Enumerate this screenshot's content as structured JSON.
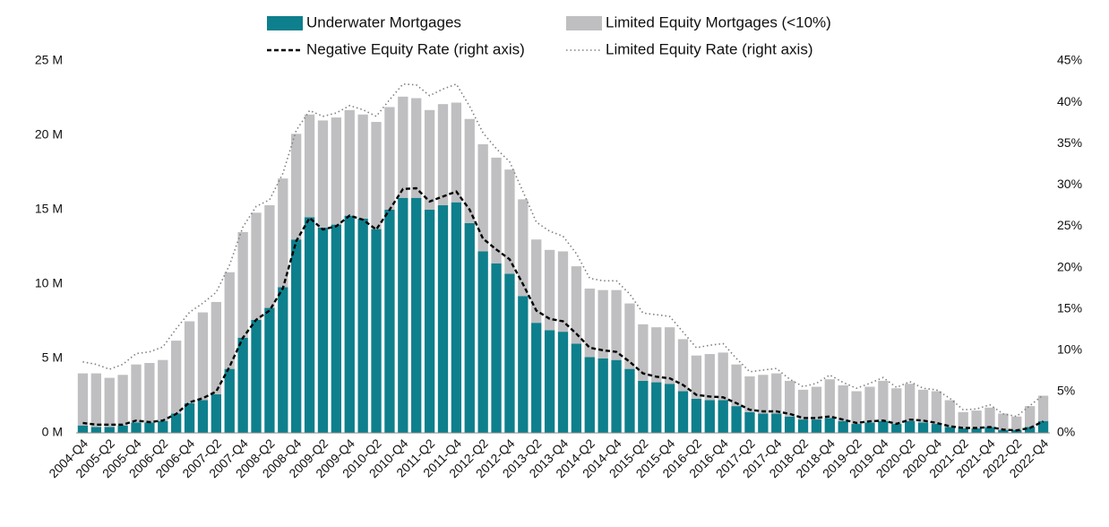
{
  "chart_data": {
    "type": "bar",
    "stacked": true,
    "categories": [
      "2004-Q4",
      null,
      "2005-Q2",
      null,
      "2005-Q4",
      null,
      "2006-Q2",
      null,
      "2006-Q4",
      null,
      "2007-Q2",
      null,
      "2007-Q4",
      null,
      "2008-Q2",
      null,
      "2008-Q4",
      null,
      "2009-Q2",
      null,
      "2009-Q4",
      null,
      "2010-Q2",
      null,
      "2010-Q4",
      null,
      "2011-Q2",
      null,
      "2011-Q4",
      null,
      "2012-Q2",
      null,
      "2012-Q4",
      null,
      "2013-Q2",
      null,
      "2013-Q4",
      null,
      "2014-Q2",
      null,
      "2014-Q4",
      null,
      "2015-Q2",
      null,
      "2015-Q4",
      null,
      "2016-Q2",
      null,
      "2016-Q4",
      null,
      "2017-Q2",
      null,
      "2017-Q4",
      null,
      "2018-Q2",
      null,
      "2018-Q4",
      null,
      "2019-Q2",
      null,
      "2019-Q4",
      null,
      "2020-Q2",
      null,
      "2020-Q4",
      null,
      "2021-Q2",
      null,
      "2021-Q4",
      null,
      "2022-Q2",
      null,
      "2022-Q4"
    ],
    "series": [
      {
        "name": "Underwater Mortgages",
        "type": "bar",
        "color": "#0e7f8c",
        "values": [
          0.5,
          0.4,
          0.4,
          0.5,
          0.7,
          0.7,
          0.8,
          1.3,
          2.0,
          2.2,
          2.6,
          4.3,
          6.4,
          7.6,
          8.4,
          9.8,
          13.0,
          14.5,
          13.8,
          14.0,
          14.6,
          14.4,
          13.7,
          15.0,
          15.8,
          15.8,
          15.0,
          15.3,
          15.5,
          14.1,
          12.2,
          11.4,
          10.7,
          9.2,
          7.4,
          6.9,
          6.8,
          6.0,
          5.1,
          5.0,
          4.9,
          4.3,
          3.5,
          3.4,
          3.3,
          2.8,
          2.3,
          2.2,
          2.2,
          1.8,
          1.4,
          1.3,
          1.3,
          1.1,
          0.9,
          0.9,
          1.0,
          0.8,
          0.6,
          0.7,
          0.8,
          0.6,
          0.8,
          0.7,
          0.6,
          0.4,
          0.3,
          0.3,
          0.4,
          0.2,
          0.2,
          0.4,
          0.8
        ]
      },
      {
        "name": "Limited Equity Mortgages (<10%)",
        "type": "bar",
        "color": "#bfbfc1",
        "values": [
          3.5,
          3.6,
          3.3,
          3.4,
          3.9,
          4.0,
          4.1,
          4.9,
          5.5,
          5.9,
          6.2,
          6.5,
          7.1,
          7.2,
          6.9,
          7.3,
          7.1,
          6.9,
          7.2,
          7.2,
          7.1,
          7.0,
          7.2,
          6.9,
          6.8,
          6.7,
          6.7,
          6.8,
          6.7,
          7.0,
          7.2,
          7.1,
          7.0,
          6.5,
          5.6,
          5.4,
          5.4,
          5.2,
          4.6,
          4.6,
          4.7,
          4.4,
          3.8,
          3.7,
          3.8,
          3.5,
          2.9,
          3.1,
          3.2,
          2.8,
          2.4,
          2.6,
          2.7,
          2.4,
          2.0,
          2.2,
          2.6,
          2.4,
          2.2,
          2.4,
          2.7,
          2.4,
          2.5,
          2.2,
          2.2,
          1.8,
          1.1,
          1.2,
          1.3,
          1.1,
          0.9,
          1.4,
          1.7
        ]
      },
      {
        "name": "Negative Equity Rate (right axis)",
        "type": "line",
        "axis": "y2",
        "dash": "dashed",
        "color": "#000000",
        "values": [
          1.2,
          1.0,
          1.0,
          1.0,
          1.5,
          1.3,
          1.5,
          2.3,
          3.7,
          4.2,
          5.0,
          8.0,
          11.5,
          13.7,
          14.8,
          17.5,
          23.2,
          26.0,
          24.6,
          25.0,
          26.3,
          25.8,
          24.6,
          27.0,
          29.5,
          29.6,
          28.0,
          28.6,
          29.2,
          27.0,
          23.5,
          22.2,
          21.0,
          18.0,
          14.8,
          13.8,
          13.5,
          12.0,
          10.3,
          10.0,
          9.8,
          8.6,
          7.2,
          6.8,
          6.6,
          5.8,
          4.6,
          4.4,
          4.3,
          3.6,
          2.8,
          2.6,
          2.6,
          2.3,
          1.8,
          1.8,
          2.0,
          1.6,
          1.2,
          1.4,
          1.5,
          1.1,
          1.6,
          1.5,
          1.2,
          0.8,
          0.6,
          0.6,
          0.7,
          0.4,
          0.3,
          0.6,
          1.4
        ]
      },
      {
        "name": "Limited Equity Rate (right axis)",
        "type": "line",
        "axis": "y2",
        "dash": "dotted",
        "color": "#808080",
        "values": [
          8.6,
          8.3,
          7.7,
          8.3,
          9.6,
          9.8,
          10.4,
          12.6,
          14.6,
          15.7,
          17.0,
          20.3,
          24.9,
          27.4,
          28.2,
          31.4,
          36.6,
          39.0,
          38.3,
          38.7,
          39.6,
          39.1,
          38.3,
          40.3,
          42.2,
          42.1,
          40.8,
          41.6,
          42.2,
          39.5,
          36.3,
          34.4,
          32.8,
          29.2,
          25.5,
          24.4,
          23.8,
          21.7,
          18.7,
          18.4,
          18.4,
          16.8,
          14.5,
          14.3,
          14.1,
          12.2,
          10.3,
          10.6,
          10.8,
          9.0,
          7.4,
          7.6,
          7.8,
          6.5,
          5.6,
          6.0,
          7.0,
          6.1,
          5.4,
          6.0,
          6.7,
          5.5,
          6.2,
          5.4,
          5.2,
          4.2,
          2.8,
          2.9,
          3.4,
          2.3,
          2.0,
          3.3,
          4.6
        ]
      }
    ],
    "ylim": [
      0,
      25
    ],
    "yticks": [
      {
        "value": 0,
        "label": "0 M"
      },
      {
        "value": 5,
        "label": "5 M"
      },
      {
        "value": 10,
        "label": "10 M"
      },
      {
        "value": 15,
        "label": "15 M"
      },
      {
        "value": 20,
        "label": "20 M"
      },
      {
        "value": 25,
        "label": "25 M"
      }
    ],
    "y2lim": [
      0,
      45
    ],
    "y2ticks": [
      {
        "value": 0,
        "label": "0%"
      },
      {
        "value": 5,
        "label": "5%"
      },
      {
        "value": 10,
        "label": "10%"
      },
      {
        "value": 15,
        "label": "15%"
      },
      {
        "value": 20,
        "label": "20%"
      },
      {
        "value": 25,
        "label": "25%"
      },
      {
        "value": 30,
        "label": "30%"
      },
      {
        "value": 35,
        "label": "35%"
      },
      {
        "value": 40,
        "label": "40%"
      },
      {
        "value": 45,
        "label": "45%"
      }
    ],
    "legend": "top"
  }
}
